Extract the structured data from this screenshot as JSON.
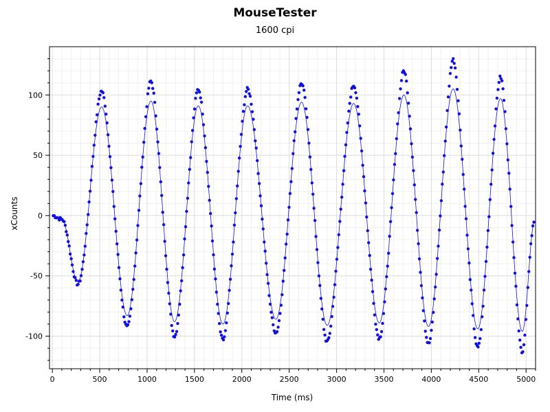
{
  "chart_data": {
    "type": "scatter",
    "title": "MouseTester",
    "subtitle": "1600 cpi",
    "xlabel": "Time (ms)",
    "ylabel": "xCounts",
    "xlim": [
      -30,
      5100
    ],
    "ylim": [
      -127,
      140
    ],
    "xticks": [
      0,
      500,
      1000,
      1500,
      2000,
      2500,
      3000,
      3500,
      4000,
      4500,
      5000
    ],
    "yticks": [
      -100,
      -50,
      0,
      50,
      100
    ],
    "grid": true,
    "marker_color": "#1010e0",
    "line_color": "#1010e0",
    "peaks": [
      {
        "x": 0,
        "y": 0
      },
      {
        "x": 100,
        "y": -3
      },
      {
        "x": 270,
        "y": -55
      },
      {
        "x": 520,
        "y": 90
      },
      {
        "x": 790,
        "y": -83
      },
      {
        "x": 1040,
        "y": 95
      },
      {
        "x": 1290,
        "y": -88
      },
      {
        "x": 1540,
        "y": 91
      },
      {
        "x": 1800,
        "y": -90
      },
      {
        "x": 2060,
        "y": 91
      },
      {
        "x": 2360,
        "y": -86
      },
      {
        "x": 2630,
        "y": 94
      },
      {
        "x": 2900,
        "y": -91
      },
      {
        "x": 3180,
        "y": 93
      },
      {
        "x": 3450,
        "y": -89
      },
      {
        "x": 3710,
        "y": 100
      },
      {
        "x": 3970,
        "y": -92
      },
      {
        "x": 4230,
        "y": 105
      },
      {
        "x": 4490,
        "y": -94
      },
      {
        "x": 4730,
        "y": 97
      },
      {
        "x": 4960,
        "y": -96
      },
      {
        "x": 5090,
        "y": -5
      }
    ]
  }
}
